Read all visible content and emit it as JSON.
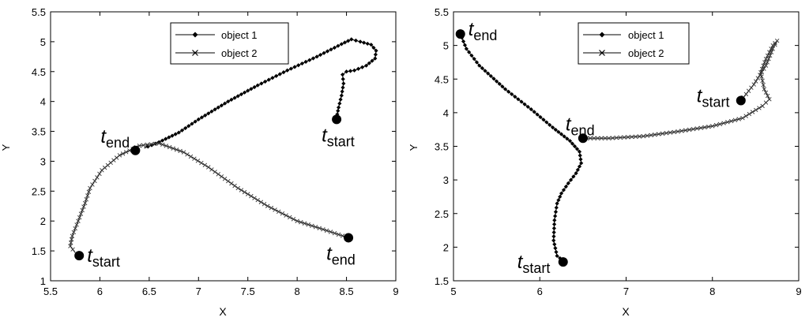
{
  "chart_data": [
    {
      "type": "line",
      "xlabel": "X",
      "ylabel": "Y",
      "xlim": [
        5.5,
        9
      ],
      "ylim": [
        1,
        5.5
      ],
      "xticks": [
        "5.5",
        "6",
        "6.5",
        "7",
        "7.5",
        "8",
        "8.5",
        "9"
      ],
      "yticks": [
        "1",
        "1.5",
        "2",
        "2.5",
        "3",
        "3.5",
        "4",
        "4.5",
        "5",
        "5.5"
      ],
      "legend": {
        "placement": "top-right",
        "entries": [
          "object 1",
          "object 2"
        ]
      },
      "series": [
        {
          "name": "object 1",
          "marker": "diamond",
          "x": [
            8.4,
            8.42,
            8.45,
            8.47,
            8.46,
            8.5,
            8.58,
            8.7,
            8.79,
            8.8,
            8.75,
            8.64,
            8.55,
            8.45,
            8.2,
            7.9,
            7.6,
            7.3,
            7.0,
            6.8,
            6.6,
            6.45
          ],
          "y": [
            3.73,
            3.9,
            4.1,
            4.3,
            4.45,
            4.5,
            4.52,
            4.6,
            4.72,
            4.85,
            4.95,
            5.0,
            5.04,
            4.96,
            4.75,
            4.52,
            4.27,
            4.0,
            3.7,
            3.48,
            3.32,
            3.22
          ]
        },
        {
          "name": "object 2",
          "marker": "x",
          "x": [
            8.5,
            8.3,
            8.0,
            7.7,
            7.4,
            7.1,
            6.85,
            6.6,
            6.4,
            6.2,
            6.02,
            5.9,
            5.85,
            5.78,
            5.72,
            5.7,
            5.75
          ],
          "y": [
            1.73,
            1.84,
            2.0,
            2.25,
            2.55,
            2.9,
            3.15,
            3.3,
            3.26,
            3.1,
            2.85,
            2.55,
            2.3,
            2.0,
            1.75,
            1.58,
            1.47
          ]
        }
      ],
      "points": [
        {
          "label": "t",
          "sub": "start",
          "x": 8.4,
          "y": 3.7
        },
        {
          "label": "t",
          "sub": "end",
          "x": 6.36,
          "y": 3.18
        },
        {
          "label": "t",
          "sub": "start",
          "x": 5.79,
          "y": 1.42
        },
        {
          "label": "t",
          "sub": "end",
          "x": 8.52,
          "y": 1.72
        }
      ]
    },
    {
      "type": "line",
      "xlabel": "X",
      "ylabel": "Y",
      "xlim": [
        5,
        9
      ],
      "ylim": [
        1.5,
        5.5
      ],
      "xticks": [
        "5",
        "6",
        "7",
        "8",
        "9"
      ],
      "yticks": [
        "1.5",
        "2",
        "2.5",
        "3",
        "3.5",
        "4",
        "4.5",
        "5",
        "5.5"
      ],
      "legend": {
        "placement": "top-right",
        "entries": [
          "object 1",
          "object 2"
        ]
      },
      "series": [
        {
          "name": "object 1",
          "marker": "diamond",
          "x": [
            6.27,
            6.2,
            6.16,
            6.17,
            6.2,
            6.25,
            6.33,
            6.42,
            6.48,
            6.46,
            6.35,
            6.15,
            5.9,
            5.6,
            5.3,
            5.15,
            5.08
          ],
          "y": [
            1.8,
            1.87,
            2.1,
            2.4,
            2.65,
            2.8,
            2.95,
            3.1,
            3.25,
            3.42,
            3.58,
            3.78,
            4.05,
            4.35,
            4.7,
            4.95,
            5.17
          ]
        },
        {
          "name": "object 2",
          "marker": "x",
          "x": [
            6.5,
            6.8,
            7.2,
            7.6,
            8.0,
            8.35,
            8.58,
            8.66,
            8.6,
            8.56,
            8.62,
            8.7,
            8.75,
            8.7,
            8.62,
            8.48,
            8.33
          ],
          "y": [
            3.62,
            3.62,
            3.65,
            3.72,
            3.8,
            3.92,
            4.1,
            4.2,
            4.35,
            4.6,
            4.8,
            5.0,
            5.07,
            4.95,
            4.7,
            4.42,
            4.18
          ]
        }
      ],
      "points": [
        {
          "label": "t",
          "sub": "end",
          "x": 5.08,
          "y": 5.17
        },
        {
          "label": "t",
          "sub": "end",
          "x": 6.5,
          "y": 3.62
        },
        {
          "label": "t",
          "sub": "start",
          "x": 8.33,
          "y": 4.18
        },
        {
          "label": "t",
          "sub": "start",
          "x": 6.27,
          "y": 1.78
        }
      ]
    }
  ]
}
